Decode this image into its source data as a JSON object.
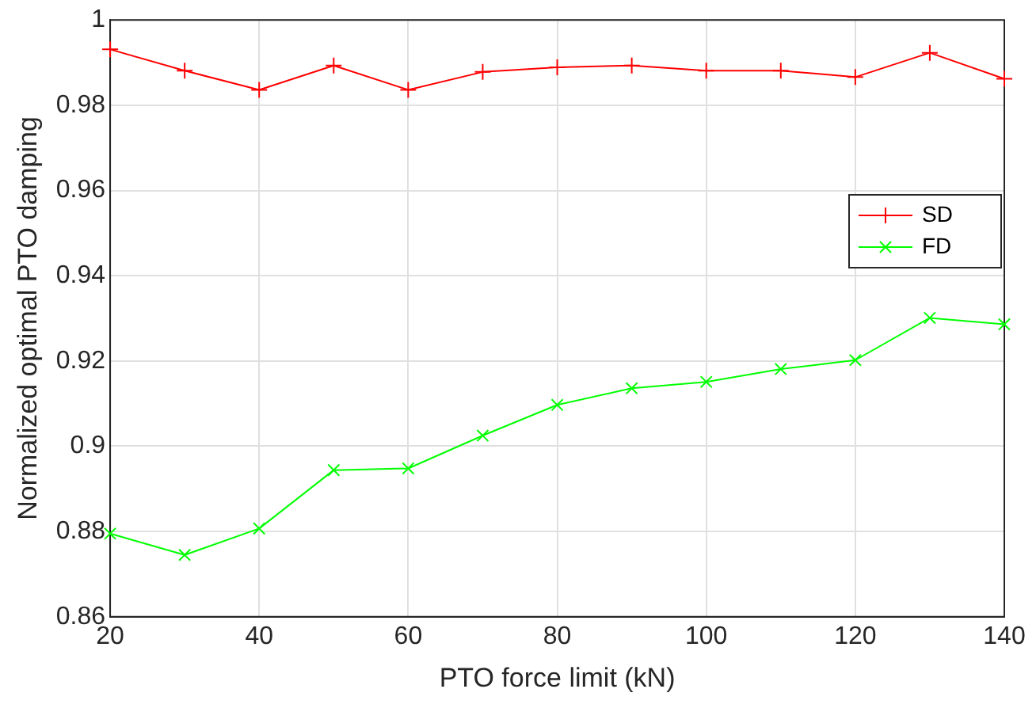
{
  "chart_data": {
    "type": "line",
    "xlabel": "PTO force limit (kN)",
    "ylabel": "Normalized optimal PTO damping",
    "x": [
      20,
      30,
      40,
      50,
      60,
      70,
      80,
      90,
      100,
      110,
      120,
      130,
      140
    ],
    "series": [
      {
        "name": "SD",
        "color": "#ff0000",
        "marker": "cross",
        "values": [
          0.9931,
          0.9881,
          0.9836,
          0.9893,
          0.9836,
          0.9878,
          0.9889,
          0.9893,
          0.9881,
          0.9881,
          0.9866,
          0.9923,
          0.9862
        ]
      },
      {
        "name": "FD",
        "color": "#00ff00",
        "marker": "x",
        "values": [
          0.8795,
          0.8745,
          0.8807,
          0.8944,
          0.8948,
          0.9025,
          0.9097,
          0.9136,
          0.9151,
          0.9181,
          0.9202,
          0.9301,
          0.9286
        ]
      }
    ],
    "xlim": [
      20,
      140
    ],
    "xticks": [
      20,
      40,
      60,
      80,
      100,
      120,
      140
    ],
    "ylim": [
      0.86,
      1
    ],
    "yticks": [
      0.86,
      0.88,
      0.9,
      0.92,
      0.94,
      0.96,
      0.98,
      1
    ],
    "grid": true,
    "legend": "right",
    "line_style": "solid"
  }
}
